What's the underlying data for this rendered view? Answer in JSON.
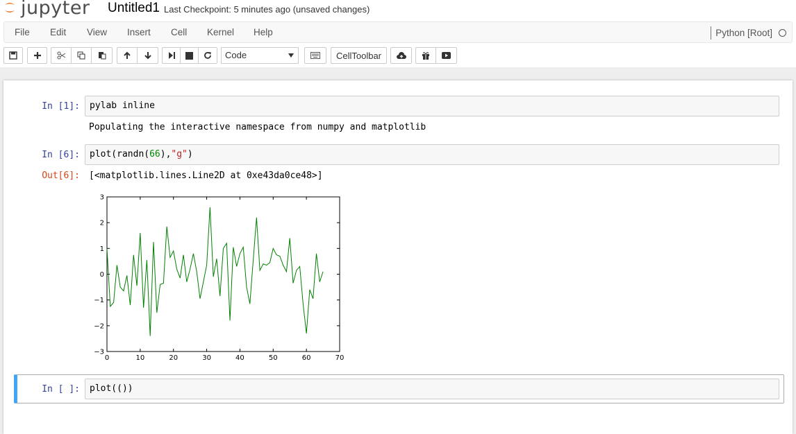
{
  "header": {
    "logo_text": "jupyter",
    "notebook_name": "Untitled1",
    "checkpoint": "Last Checkpoint: 5 minutes ago (unsaved changes)"
  },
  "menubar": {
    "items": [
      "File",
      "Edit",
      "View",
      "Insert",
      "Cell",
      "Kernel",
      "Help"
    ],
    "kernel_name": "Python [Root]"
  },
  "toolbar": {
    "buttons": [
      "save-icon",
      "plus-icon",
      "cut-icon",
      "copy-icon",
      "paste-icon",
      "arrow-up-icon",
      "arrow-down-icon",
      "step-forward-icon",
      "stop-icon",
      "refresh-icon"
    ],
    "cell_type": "Code",
    "keyboard_icon": "keyboard-icon",
    "celltoolbar_label": "CellToolbar",
    "extra_icons": [
      "cloud-upload-icon",
      "gift-icon",
      "presentation-icon"
    ]
  },
  "cells": [
    {
      "prompt": "In [1]:",
      "source": "pylab inline",
      "output": "Populating the interactive namespace from numpy and matplotlib"
    },
    {
      "prompt": "In [6]:",
      "source_parts": [
        "plot(randn(",
        "66",
        "),",
        "\"g\"",
        ")"
      ],
      "out_prompt": "Out[6]:",
      "output": "[<matplotlib.lines.Line2D at 0xe43da0ce48>]"
    },
    {
      "prompt": "In [ ]:",
      "source": "plot(())"
    }
  ],
  "chart_data": {
    "type": "line",
    "title": "",
    "xlabel": "",
    "ylabel": "",
    "xlim": [
      0,
      70
    ],
    "ylim": [
      -3,
      3
    ],
    "xticks": [
      0,
      10,
      20,
      30,
      40,
      50,
      60,
      70
    ],
    "yticks": [
      3,
      2,
      1,
      0,
      -1,
      -2,
      -3
    ],
    "ytick_labels": [
      "3",
      "2",
      "1",
      "0",
      "−1",
      "−2",
      "−3"
    ],
    "grid": false,
    "series": [
      {
        "color": "#008000",
        "x": [
          0,
          1,
          2,
          3,
          4,
          5,
          6,
          7,
          8,
          9,
          10,
          11,
          12,
          13,
          14,
          15,
          16,
          17,
          18,
          19,
          20,
          21,
          22,
          23,
          24,
          25,
          26,
          27,
          28,
          29,
          30,
          31,
          32,
          33,
          34,
          35,
          36,
          37,
          38,
          39,
          40,
          41,
          42,
          43,
          44,
          45,
          46,
          47,
          48,
          49,
          50,
          51,
          52,
          53,
          54,
          55,
          56,
          57,
          58,
          59,
          60,
          61,
          62,
          63,
          64,
          65
        ],
        "values": [
          1.0,
          -1.25,
          -1.1,
          0.35,
          -0.5,
          -0.65,
          -0.05,
          -1.2,
          0.75,
          -0.45,
          1.6,
          -1.3,
          0.55,
          -2.4,
          1.25,
          -1.5,
          -0.4,
          -0.35,
          1.85,
          0.65,
          0.9,
          0.2,
          -0.15,
          0.75,
          -0.3,
          0.2,
          0.8,
          0.1,
          -0.95,
          -0.3,
          0.35,
          2.6,
          -0.1,
          0.6,
          -0.85,
          1.0,
          1.2,
          -1.8,
          1.05,
          0.3,
          0.8,
          1.05,
          -0.5,
          -1.15,
          0.55,
          2.2,
          0.15,
          0.4,
          0.35,
          0.45,
          1.0,
          0.75,
          0.7,
          0.35,
          0.1,
          1.4,
          -0.35,
          0.15,
          0.3,
          -1.15,
          -2.3,
          -0.6,
          -0.95,
          0.8,
          -0.3,
          0.1
        ]
      }
    ]
  }
}
